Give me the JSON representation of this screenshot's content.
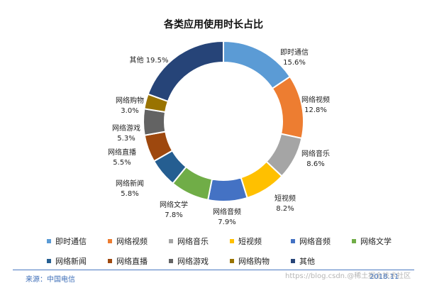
{
  "colors": {
    "footer": "#3f6fb8"
  },
  "chart_data": {
    "type": "pie",
    "style": "donut",
    "title": "各类应用使用时长占比",
    "slices": [
      {
        "label": "即时通信",
        "value": 15.6,
        "value_label": "15.6%",
        "color": "#5b9bd5"
      },
      {
        "label": "网络视频",
        "value": 12.8,
        "value_label": "12.8%",
        "color": "#ed7d31"
      },
      {
        "label": "网络音乐",
        "value": 8.6,
        "value_label": "8.6%",
        "color": "#a5a5a5"
      },
      {
        "label": "短视频",
        "value": 8.2,
        "value_label": "8.2%",
        "color": "#ffc000"
      },
      {
        "label": "网络音频",
        "value": 7.9,
        "value_label": "7.9%",
        "color": "#4472c4"
      },
      {
        "label": "网络文学",
        "value": 7.8,
        "value_label": "7.8%",
        "color": "#70ad47"
      },
      {
        "label": "网络新闻",
        "value": 5.8,
        "value_label": "5.8%",
        "color": "#255e91"
      },
      {
        "label": "网络直播",
        "value": 5.5,
        "value_label": "5.5%",
        "color": "#9e480e"
      },
      {
        "label": "网络游戏",
        "value": 5.3,
        "value_label": "5.3%",
        "color": "#636363"
      },
      {
        "label": "网络购物",
        "value": 3.0,
        "value_label": "3.0%",
        "color": "#997300"
      },
      {
        "label": "其他",
        "value": 19.5,
        "value_label": "19.5%",
        "color": "#264478"
      }
    ],
    "legend": {
      "position": "bottom"
    }
  },
  "source": "来源：中国电信",
  "date": "2018.11",
  "watermark": "https://blog.csdn.@稀土掘金技术社区"
}
